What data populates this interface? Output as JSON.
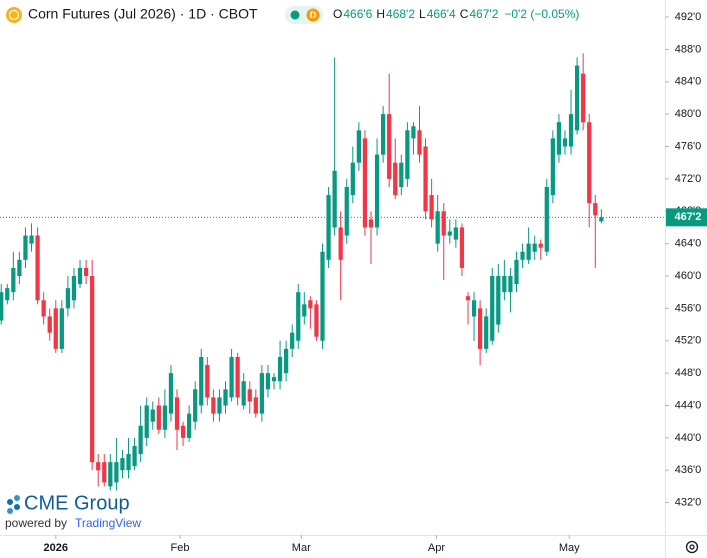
{
  "chart_data": {
    "type": "candlestick",
    "title": "Corn Futures (Jul 2026) · 1D · CBOT",
    "badge": "D",
    "ohlc_legend": [
      {
        "label": "O",
        "value": "466'6"
      },
      {
        "label": "H",
        "value": "468'2"
      },
      {
        "label": "L",
        "value": "466'4"
      },
      {
        "label": "C",
        "value": "467'2"
      }
    ],
    "change": "−0'2 (−0.05%)",
    "branding": {
      "logo": "CME Group",
      "powered_by": "powered by",
      "provider": "TradingView"
    },
    "up_color": "#089981",
    "down_color": "#f23645",
    "last_price": {
      "value": 467.25,
      "label": "467'2"
    },
    "open": [
      454.5,
      457,
      458,
      460,
      462,
      464,
      465,
      457,
      455,
      456,
      451,
      456,
      457,
      459,
      461,
      460,
      437,
      437,
      434,
      434.5,
      436,
      436,
      436.5,
      438,
      440,
      442,
      444,
      441,
      443,
      445,
      441.5,
      440,
      442,
      444,
      449,
      445,
      443,
      444,
      445,
      450,
      444,
      446,
      445,
      443,
      446,
      447,
      447,
      448,
      451,
      452,
      455,
      457,
      456.5,
      452,
      462,
      466,
      466,
      465,
      470,
      474,
      477,
      467,
      466,
      475,
      480,
      474,
      471,
      472,
      477,
      478,
      476,
      470,
      464,
      468,
      465,
      464.5,
      466,
      457.5,
      455,
      456,
      451,
      452,
      454,
      458,
      458,
      459,
      462,
      462,
      463,
      464,
      463,
      470,
      475,
      476,
      476,
      478,
      485,
      479,
      469,
      466.75
    ],
    "high": [
      459,
      459,
      463,
      463,
      466,
      466.5,
      466,
      458,
      456,
      457,
      457,
      460,
      461,
      462,
      462,
      462,
      438,
      438,
      438,
      440,
      438.5,
      440,
      440,
      444,
      445,
      444.5,
      445,
      446,
      449,
      446,
      442,
      444,
      447,
      451,
      450,
      446,
      446,
      447,
      451,
      450.5,
      448,
      447,
      446,
      449,
      449,
      448,
      452,
      452,
      454,
      459,
      458,
      457.5,
      457,
      464,
      471,
      487,
      468,
      472,
      476,
      479,
      478,
      468,
      477,
      481,
      485,
      477,
      475,
      479,
      479,
      481,
      477,
      472,
      470,
      469,
      467,
      467,
      466.5,
      458,
      458,
      457,
      456,
      461,
      461.5,
      462,
      461,
      463,
      464,
      466,
      465,
      464.5,
      472,
      478,
      480,
      478,
      483,
      487,
      487.5,
      480,
      470,
      468.25
    ],
    "low": [
      454,
      456.5,
      457,
      459,
      461,
      463,
      456.5,
      454,
      452,
      450.5,
      450.5,
      455,
      456,
      458.5,
      459,
      436,
      434,
      434,
      433.5,
      433.5,
      435,
      435,
      436,
      437,
      439,
      441,
      440.5,
      440,
      442,
      438.5,
      439,
      439.5,
      441,
      443,
      444,
      442,
      442,
      443,
      444.5,
      444,
      443.5,
      443,
      442.5,
      442,
      445,
      446,
      446,
      447,
      450,
      451,
      454,
      453.5,
      452,
      451,
      461,
      465,
      457,
      464,
      469,
      473,
      465,
      461.5,
      465,
      474,
      471,
      469.5,
      470,
      471,
      475,
      474,
      467,
      466,
      463,
      459.5,
      464,
      463.5,
      460,
      454,
      452,
      449,
      450.5,
      451.5,
      453,
      457,
      455.5,
      458,
      461,
      461.5,
      462,
      462,
      462.5,
      469,
      474,
      475,
      475,
      477.5,
      478,
      466,
      461,
      466.5
    ],
    "close": [
      458,
      458.5,
      461,
      462,
      465,
      465,
      457,
      455,
      453,
      451,
      456,
      458.5,
      460,
      461,
      460,
      437,
      436,
      434.5,
      437,
      437,
      437.5,
      438,
      439,
      441.5,
      444,
      443.5,
      441,
      444,
      448,
      441,
      440,
      443,
      446,
      450,
      445,
      443,
      445,
      446,
      450,
      445,
      447,
      444.5,
      443,
      448,
      448,
      447.5,
      450,
      451,
      453,
      458,
      456.5,
      456,
      452.5,
      463,
      470,
      473,
      462,
      471,
      474,
      478,
      466,
      466,
      475,
      480,
      472,
      470,
      474,
      478,
      478.5,
      475,
      468,
      467,
      468,
      465,
      465.5,
      466,
      461,
      457,
      457,
      451,
      455,
      460,
      460,
      460,
      460,
      462,
      463,
      464,
      464,
      463.5,
      471,
      477,
      479,
      477,
      480,
      486,
      479,
      469,
      467.5,
      467.25
    ],
    "xlim": [
      -0.2,
      109.5
    ],
    "xticks": [
      {
        "value": 9,
        "label": "2026"
      },
      {
        "value": 29.5,
        "label": "Feb"
      },
      {
        "value": 49.5,
        "label": "Mar"
      },
      {
        "value": 71.8,
        "label": "Apr"
      },
      {
        "value": 93.7,
        "label": "May"
      }
    ],
    "ylim": [
      428,
      494.1
    ],
    "yticks": [
      {
        "value": 432,
        "label": "432'0"
      },
      {
        "value": 436,
        "label": "436'0"
      },
      {
        "value": 440,
        "label": "440'0"
      },
      {
        "value": 444,
        "label": "444'0"
      },
      {
        "value": 448,
        "label": "448'0"
      },
      {
        "value": 452,
        "label": "452'0"
      },
      {
        "value": 456,
        "label": "456'0"
      },
      {
        "value": 460,
        "label": "460'0"
      },
      {
        "value": 464,
        "label": "464'0"
      },
      {
        "value": 468,
        "label": "468'0"
      },
      {
        "value": 472,
        "label": "472'0"
      },
      {
        "value": 476,
        "label": "476'0"
      },
      {
        "value": 480,
        "label": "480'0"
      },
      {
        "value": 484,
        "label": "484'0"
      },
      {
        "value": 488,
        "label": "488'0"
      },
      {
        "value": 492,
        "label": "492'0"
      }
    ],
    "grid": false
  }
}
